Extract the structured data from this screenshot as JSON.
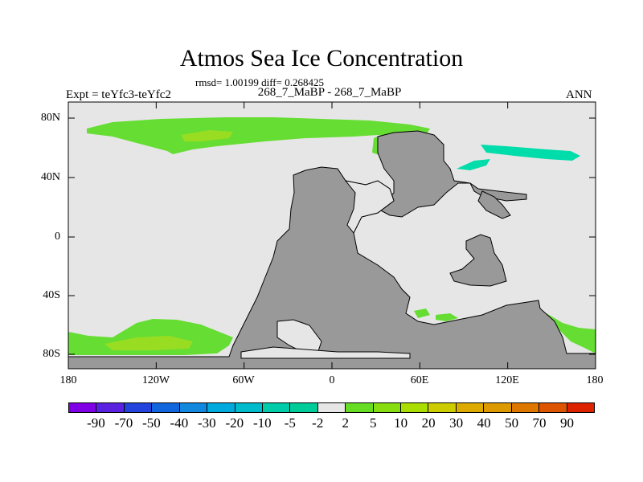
{
  "title": "Atmos Sea Ice Concentration",
  "stats_line": "rmsd= 1.00199 diff= 0.268425",
  "experiment_label": "Expt = teYfc3-teYfc2",
  "period_label": "268_7_MaBP - 268_7_MaBP",
  "season_label": "ANN",
  "map": {
    "lat_ticks": [
      "80N",
      "40N",
      "0",
      "40S",
      "80S"
    ],
    "lon_ticks": [
      "180",
      "120W",
      "60W",
      "0",
      "60E",
      "120E",
      "180"
    ],
    "colors": {
      "ocean": "#e6e6e6",
      "land": "#999999",
      "positive_ice": "#66dd33",
      "positive_ice_strong": "#99dd22",
      "negative_ice": "#00ddaa"
    }
  },
  "colorbar": {
    "labels": [
      "-90",
      "-70",
      "-50",
      "-40",
      "-30",
      "-20",
      "-10",
      "-5",
      "-2",
      "2",
      "5",
      "10",
      "20",
      "30",
      "40",
      "50",
      "70",
      "90"
    ],
    "colors": [
      "#8000e6",
      "#5a22e0",
      "#2244dd",
      "#1166dd",
      "#1188dd",
      "#00aadd",
      "#00bbcc",
      "#00ccaa",
      "#00cc99",
      "#e6e6e6",
      "#66dd22",
      "#88dd11",
      "#aadd00",
      "#cccc00",
      "#ddaa00",
      "#dd9900",
      "#dd7700",
      "#dd5500",
      "#dd2200"
    ]
  }
}
